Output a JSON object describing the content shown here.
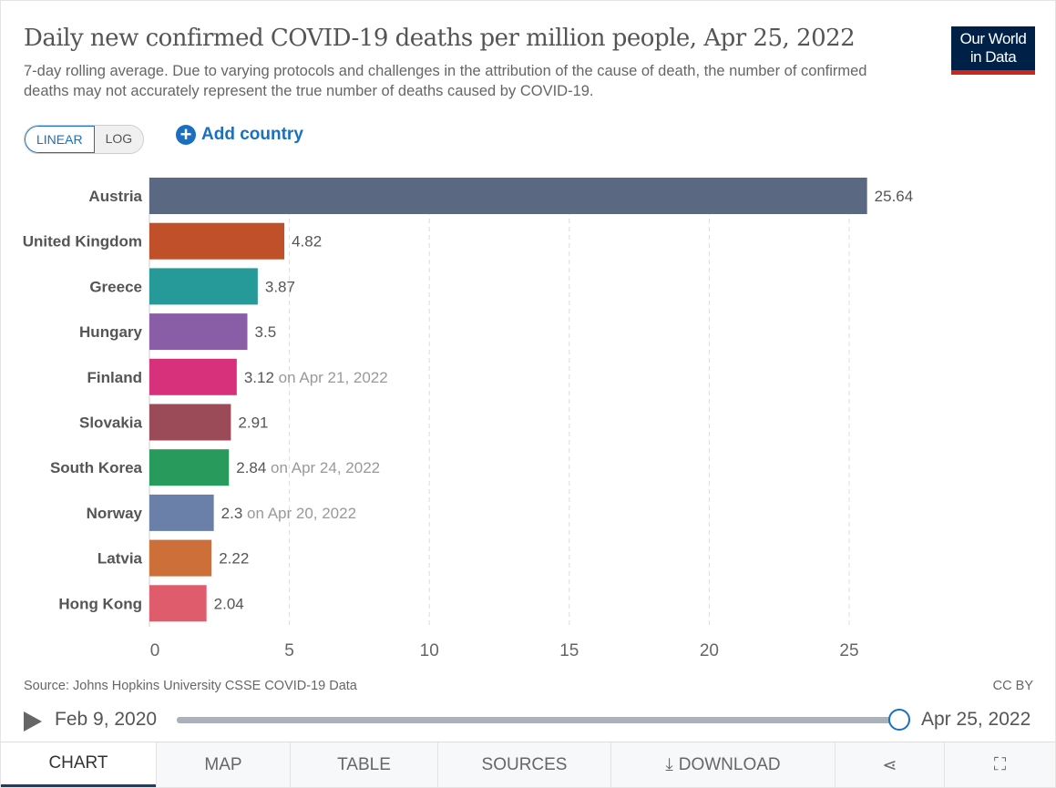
{
  "header": {
    "title": "Daily new confirmed COVID-19 deaths per million people, Apr 25, 2022",
    "subtitle": "7-day rolling average. Due to varying protocols and challenges in the attribution of the cause of death, the number of confirmed deaths may not accurately represent the true number of deaths caused by COVID-19.",
    "logo": "Our World in Data"
  },
  "controls": {
    "linear": "LINEAR",
    "log": "LOG",
    "add_country": "Add country"
  },
  "chart_data": {
    "type": "bar",
    "orientation": "horizontal",
    "title": "Daily new confirmed COVID-19 deaths per million people, Apr 25, 2022",
    "xlim": [
      0,
      25.64
    ],
    "xticks": [
      "0",
      "5",
      "10",
      "15",
      "20",
      "25"
    ],
    "grid": "vertical dashed",
    "categories": [
      "Austria",
      "United Kingdom",
      "Greece",
      "Hungary",
      "Finland",
      "Slovakia",
      "South Korea",
      "Norway",
      "Latvia",
      "Hong Kong"
    ],
    "values": [
      25.64,
      4.82,
      3.87,
      3.5,
      3.12,
      2.91,
      2.84,
      2.3,
      2.22,
      2.04
    ],
    "labels": [
      "25.64",
      "4.82",
      "3.87",
      "3.5",
      "3.12",
      "2.91",
      "2.84",
      "2.3",
      "2.22",
      "2.04"
    ],
    "notes": [
      "",
      "",
      "",
      "",
      "on Apr 21, 2022",
      "",
      "on Apr 24, 2022",
      "on Apr 20, 2022",
      "",
      ""
    ],
    "colors": [
      "#5a6882",
      "#c0502a",
      "#269a98",
      "#8a5ea6",
      "#d8317c",
      "#9b4b57",
      "#289a5b",
      "#6a80a9",
      "#cc6f39",
      "#df5c6c"
    ]
  },
  "footer": {
    "source": "Source: Johns Hopkins University CSSE COVID-19 Data",
    "license": "CC BY"
  },
  "timeline": {
    "start": "Feb 9, 2020",
    "end": "Apr 25, 2022",
    "position": 1.0
  },
  "tabs": [
    "CHART",
    "MAP",
    "TABLE",
    "SOURCES",
    "DOWNLOAD"
  ]
}
